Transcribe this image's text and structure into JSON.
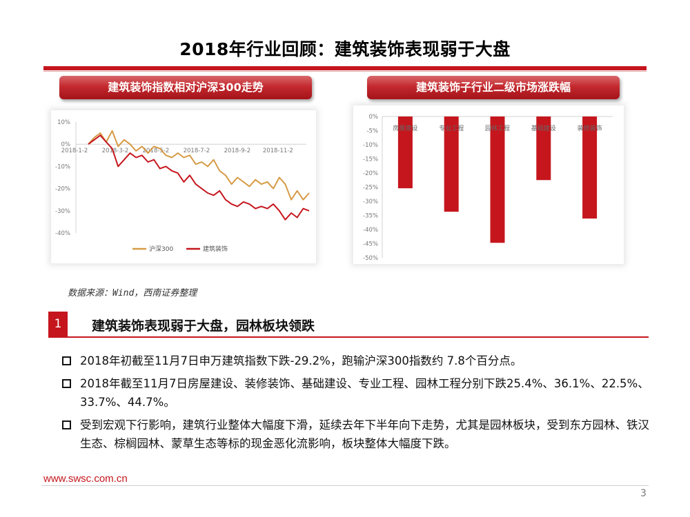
{
  "title": "2018年行业回顾：建筑装饰表现弱于大盘",
  "colors": {
    "accent": "#c5161d",
    "hs300": "#d69a45",
    "construction": "#c5161d"
  },
  "left_panel": {
    "heading": "建筑装饰指数相对沪深300走势"
  },
  "right_panel": {
    "heading": "建筑装饰子行业二级市场涨跌幅"
  },
  "source": "数据来源：Wind，西南证券整理",
  "section": {
    "number": "1",
    "title": "建筑装饰表现弱于大盘，园林板块领跌",
    "bullet_icon": "square-bullet-icon",
    "bullets": [
      "2018年初截至11月7日申万建筑指数下跌-29.2%，跑输沪深300指数约 7.8个百分点。",
      "2018年截至11月7日房屋建设、装修装饰、基础建设、专业工程、园林工程分别下跌25.4%、36.1%、22.5%、33.7%、44.7%。",
      "受到宏观下行影响，建筑行业整体大幅度下滑，延续去年下半年向下走势，尤其是园林板块，受到东方园林、铁汉生态、棕榈园林、蒙草生态等标的现金恶化流影响，板块整体大幅度下跌。"
    ]
  },
  "footer": {
    "url": "www.swsc.com.cn",
    "page": "3"
  },
  "chart_data": [
    {
      "type": "line",
      "x_ticks": [
        "2018-1-2",
        "2018-3-2",
        "2018-5-2",
        "2018-7-2",
        "2018-9-2",
        "2018-11-2"
      ],
      "y_ticks": [
        "10%",
        "0%",
        "-10%",
        "-20%",
        "-30%",
        "-40%"
      ],
      "ylim": [
        -40,
        10
      ],
      "legend_position": "bottom",
      "series": [
        {
          "name": "沪深300",
          "color": "#d69a45",
          "values": [
            0,
            3,
            5,
            1,
            6,
            -1,
            2,
            0,
            -3,
            -1,
            -4,
            -1,
            -2,
            -5,
            -6,
            -4,
            -6,
            -5,
            -9,
            -8,
            -10,
            -7,
            -12,
            -14,
            -18,
            -15,
            -17,
            -19,
            -16,
            -18,
            -17,
            -20,
            -15,
            -18,
            -25,
            -21,
            -25,
            -22
          ]
        },
        {
          "name": "建筑装饰",
          "color": "#c5161d",
          "values": [
            0,
            2,
            4,
            1,
            -2,
            -10,
            -7,
            -4,
            -6,
            -5,
            -8,
            -7,
            -11,
            -10,
            -12,
            -13,
            -17,
            -14,
            -18,
            -20,
            -22,
            -23,
            -21,
            -25,
            -27,
            -28,
            -26,
            -27,
            -29,
            -28,
            -29,
            -27,
            -30,
            -34,
            -31,
            -33,
            -29,
            -30
          ]
        }
      ]
    },
    {
      "type": "bar",
      "categories": [
        "房屋建设",
        "专业工程",
        "园林工程",
        "基础建设",
        "装修装饰"
      ],
      "values": [
        -25.4,
        -33.7,
        -44.7,
        -22.5,
        -36.1
      ],
      "y_ticks": [
        "0%",
        "-5%",
        "-10%",
        "-15%",
        "-20%",
        "-25%",
        "-30%",
        "-35%",
        "-40%",
        "-45%",
        "-50%"
      ],
      "ylim": [
        -50,
        0
      ],
      "color": "#c5161d"
    }
  ]
}
